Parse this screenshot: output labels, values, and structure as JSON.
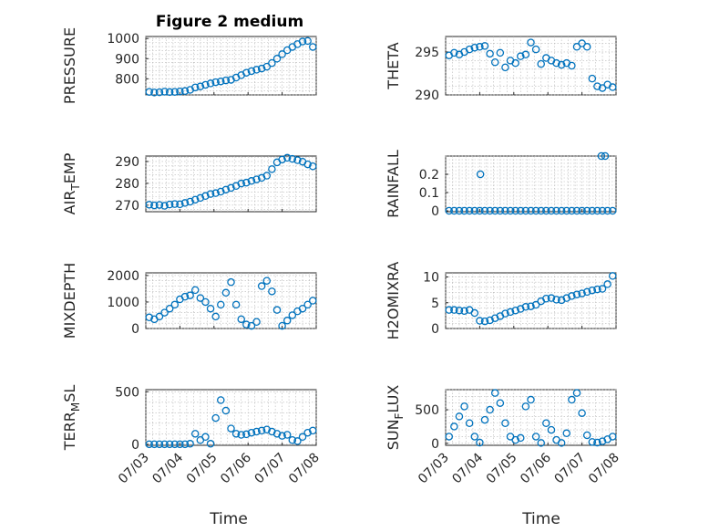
{
  "figure": {
    "title": "Figure 2 medium",
    "marker_color": "#0072BD",
    "x_tick_labels": [
      "07/03",
      "07/04",
      "07/05",
      "07/06",
      "07/07",
      "07/08"
    ],
    "x_label": "Time"
  },
  "chart_data": [
    {
      "type": "scatter",
      "id": "pressure",
      "ylabel": "PRESSURE",
      "ylabel_sub": null,
      "title": "Figure 2 medium",
      "xlim": [
        0,
        5
      ],
      "ylim": [
        720,
        1010
      ],
      "yticks": [
        800,
        900,
        1000
      ],
      "ytick_labels": [
        "800",
        "900",
        "1000"
      ],
      "grid": true,
      "show_xticklabels": false,
      "x": [
        0.1,
        0.25,
        0.4,
        0.55,
        0.7,
        0.85,
        1.0,
        1.15,
        1.3,
        1.45,
        1.6,
        1.75,
        1.9,
        2.05,
        2.2,
        2.35,
        2.5,
        2.65,
        2.8,
        2.95,
        3.1,
        3.25,
        3.4,
        3.55,
        3.7,
        3.85,
        4.0,
        4.15,
        4.3,
        4.45,
        4.6,
        4.75,
        4.9
      ],
      "y": [
        735,
        732,
        733,
        736,
        734,
        735,
        737,
        739,
        745,
        757,
        762,
        770,
        777,
        783,
        787,
        792,
        795,
        806,
        818,
        830,
        838,
        845,
        851,
        860,
        878,
        900,
        922,
        942,
        958,
        972,
        985,
        988,
        958
      ]
    },
    {
      "type": "scatter",
      "id": "theta",
      "ylabel": "THETA",
      "ylabel_sub": null,
      "xlim": [
        0,
        5
      ],
      "ylim": [
        290,
        296.8
      ],
      "yticks": [
        290,
        295
      ],
      "ytick_labels": [
        "290",
        "295"
      ],
      "grid": true,
      "show_xticklabels": false,
      "x": [
        0.1,
        0.25,
        0.4,
        0.55,
        0.7,
        0.85,
        1.0,
        1.15,
        1.3,
        1.45,
        1.6,
        1.75,
        1.9,
        2.05,
        2.2,
        2.35,
        2.5,
        2.65,
        2.8,
        2.95,
        3.1,
        3.25,
        3.4,
        3.55,
        3.7,
        3.85,
        4.0,
        4.15,
        4.3,
        4.45,
        4.6,
        4.75,
        4.9
      ],
      "y": [
        294.6,
        294.9,
        294.7,
        295.0,
        295.3,
        295.5,
        295.6,
        295.7,
        294.8,
        293.8,
        294.9,
        293.2,
        294.0,
        293.7,
        294.5,
        294.7,
        296.1,
        295.3,
        293.6,
        294.3,
        294.0,
        293.7,
        293.5,
        293.7,
        293.4,
        295.6,
        296.0,
        295.6,
        291.9,
        291.0,
        290.8,
        291.2,
        290.9
      ]
    },
    {
      "type": "scatter",
      "id": "air_temp",
      "ylabel": "AIR",
      "ylabel_sub": "T",
      "ylabel_rest": "EMP",
      "xlim": [
        0,
        5
      ],
      "ylim": [
        267,
        292.5
      ],
      "yticks": [
        270,
        280,
        290
      ],
      "ytick_labels": [
        "270",
        "280",
        "290"
      ],
      "grid": true,
      "show_xticklabels": false,
      "x": [
        0.1,
        0.25,
        0.4,
        0.55,
        0.7,
        0.85,
        1.0,
        1.15,
        1.3,
        1.45,
        1.6,
        1.75,
        1.9,
        2.05,
        2.2,
        2.35,
        2.5,
        2.65,
        2.8,
        2.95,
        3.1,
        3.25,
        3.4,
        3.55,
        3.7,
        3.85,
        4.0,
        4.15,
        4.3,
        4.45,
        4.6,
        4.75,
        4.9
      ],
      "y": [
        270.2,
        269.9,
        270.1,
        269.7,
        270.3,
        270.5,
        270.4,
        271.0,
        271.6,
        272.5,
        273.3,
        274.2,
        275.1,
        275.5,
        276.2,
        277.1,
        277.9,
        278.8,
        279.9,
        280.3,
        281.1,
        281.8,
        282.5,
        283.5,
        286.5,
        289.6,
        290.9,
        291.7,
        291.2,
        290.6,
        289.9,
        288.7,
        287.8
      ]
    },
    {
      "type": "scatter",
      "id": "rainfall",
      "ylabel": "RAINFALL",
      "ylabel_sub": null,
      "xlim": [
        0,
        5
      ],
      "ylim": [
        -0.005,
        0.3
      ],
      "yticks": [
        0,
        0.1,
        0.2
      ],
      "ytick_labels": [
        "0",
        "0.1",
        "0.2"
      ],
      "grid": true,
      "show_xticklabels": false,
      "x": [
        0.1,
        0.25,
        0.4,
        0.55,
        0.7,
        0.85,
        1.0,
        1.15,
        1.3,
        1.45,
        1.6,
        1.75,
        1.9,
        2.05,
        2.2,
        2.35,
        2.5,
        2.65,
        2.8,
        2.95,
        3.1,
        3.25,
        3.4,
        3.55,
        3.7,
        3.85,
        4.0,
        4.15,
        4.3,
        4.45,
        4.6,
        4.75,
        4.9,
        1.02,
        4.57,
        4.68
      ],
      "y": [
        0,
        0,
        0,
        0,
        0,
        0,
        0,
        0,
        0,
        0,
        0,
        0,
        0,
        0,
        0,
        0,
        0,
        0,
        0,
        0,
        0,
        0,
        0,
        0,
        0,
        0,
        0,
        0,
        0,
        0,
        0,
        0,
        0,
        0.2,
        0.3,
        0.3
      ]
    },
    {
      "type": "scatter",
      "id": "mixdepth",
      "ylabel": "MIXDEPTH",
      "ylabel_sub": null,
      "xlim": [
        0,
        5
      ],
      "ylim": [
        0,
        2100
      ],
      "yticks": [
        0,
        1000,
        2000
      ],
      "ytick_labels": [
        "0",
        "1000",
        "2000"
      ],
      "grid": true,
      "show_xticklabels": false,
      "x": [
        0.1,
        0.25,
        0.4,
        0.55,
        0.7,
        0.85,
        1.0,
        1.15,
        1.3,
        1.45,
        1.6,
        1.75,
        1.9,
        2.05,
        2.2,
        2.35,
        2.5,
        2.65,
        2.8,
        2.95,
        3.1,
        3.25,
        3.4,
        3.55,
        3.7,
        3.85,
        4.0,
        4.15,
        4.3,
        4.45,
        4.6,
        4.75,
        4.9
      ],
      "y": [
        420,
        350,
        450,
        600,
        750,
        900,
        1100,
        1200,
        1250,
        1450,
        1150,
        1000,
        750,
        450,
        900,
        1350,
        1750,
        900,
        350,
        150,
        100,
        250,
        1600,
        1800,
        1400,
        700,
        100,
        300,
        500,
        650,
        750,
        900,
        1050
      ]
    },
    {
      "type": "scatter",
      "id": "h2omixra",
      "ylabel": "H2OMIXRA",
      "ylabel_sub": null,
      "xlim": [
        0,
        5
      ],
      "ylim": [
        0,
        10.8
      ],
      "yticks": [
        0,
        5,
        10
      ],
      "ytick_labels": [
        "0",
        "5",
        "10"
      ],
      "grid": true,
      "show_xticklabels": false,
      "x": [
        0.1,
        0.25,
        0.4,
        0.55,
        0.7,
        0.85,
        1.0,
        1.15,
        1.3,
        1.45,
        1.6,
        1.75,
        1.9,
        2.05,
        2.2,
        2.35,
        2.5,
        2.65,
        2.8,
        2.95,
        3.1,
        3.25,
        3.4,
        3.55,
        3.7,
        3.85,
        4.0,
        4.15,
        4.3,
        4.45,
        4.6,
        4.75,
        4.9
      ],
      "y": [
        3.6,
        3.6,
        3.5,
        3.4,
        3.6,
        3.0,
        1.5,
        1.4,
        1.6,
        2.0,
        2.4,
        2.9,
        3.2,
        3.5,
        3.8,
        4.2,
        4.3,
        4.6,
        5.3,
        5.8,
        5.9,
        5.6,
        5.5,
        5.9,
        6.3,
        6.6,
        6.8,
        7.1,
        7.4,
        7.6,
        7.7,
        8.6,
        10.2
      ]
    },
    {
      "type": "scatter",
      "id": "terr_msl",
      "ylabel": "TERR",
      "ylabel_sub": "M",
      "ylabel_rest": "SL",
      "xlim": [
        0,
        5
      ],
      "ylim": [
        -10,
        520
      ],
      "yticks": [
        0,
        500
      ],
      "ytick_labels": [
        "0",
        "500"
      ],
      "grid": true,
      "show_xticklabels": true,
      "x": [
        0.1,
        0.25,
        0.4,
        0.55,
        0.7,
        0.85,
        1.0,
        1.15,
        1.3,
        1.45,
        1.6,
        1.75,
        1.9,
        2.05,
        2.2,
        2.35,
        2.5,
        2.65,
        2.8,
        2.95,
        3.1,
        3.25,
        3.4,
        3.55,
        3.7,
        3.85,
        4.0,
        4.15,
        4.3,
        4.45,
        4.6,
        4.75,
        4.9
      ],
      "y": [
        0,
        0,
        0,
        0,
        0,
        0,
        0,
        0,
        5,
        100,
        40,
        70,
        5,
        250,
        420,
        320,
        150,
        100,
        90,
        95,
        110,
        120,
        130,
        140,
        120,
        100,
        80,
        90,
        40,
        30,
        70,
        110,
        130
      ]
    },
    {
      "type": "scatter",
      "id": "sun_flux",
      "ylabel": "SUN",
      "ylabel_sub": "F",
      "ylabel_rest": "LUX",
      "xlim": [
        0,
        5
      ],
      "ylim": [
        -30,
        800
      ],
      "yticks": [
        0,
        500
      ],
      "ytick_labels": [
        "0",
        "500"
      ],
      "grid": true,
      "show_xticklabels": true,
      "x": [
        0.1,
        0.25,
        0.4,
        0.55,
        0.7,
        0.85,
        1.0,
        1.15,
        1.3,
        1.45,
        1.6,
        1.75,
        1.9,
        2.05,
        2.2,
        2.35,
        2.5,
        2.65,
        2.8,
        2.95,
        3.1,
        3.25,
        3.4,
        3.55,
        3.7,
        3.85,
        4.0,
        4.15,
        4.3,
        4.45,
        4.6,
        4.75,
        4.9
      ],
      "y": [
        100,
        250,
        400,
        550,
        300,
        100,
        10,
        350,
        500,
        750,
        600,
        300,
        100,
        50,
        80,
        550,
        650,
        100,
        5,
        300,
        200,
        50,
        5,
        150,
        650,
        750,
        450,
        120,
        20,
        10,
        30,
        60,
        100
      ]
    }
  ]
}
